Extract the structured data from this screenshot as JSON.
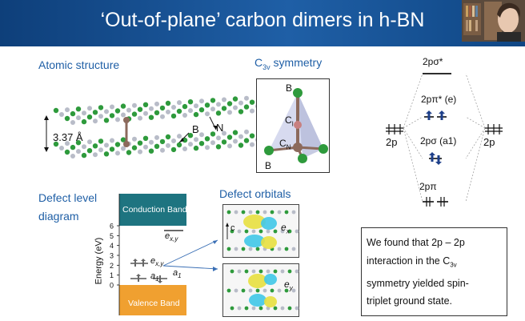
{
  "slide": {
    "title": "‘Out-of-plane’ carbon dimers in h-BN"
  },
  "atomic_structure": {
    "heading": "Atomic structure",
    "spacing_label": "3.37 Å",
    "label_b": "B",
    "label_n": "N"
  },
  "symmetry": {
    "heading_main": "C",
    "heading_sub": "3v",
    "heading_rest": " symmetry",
    "label_b_top": "B",
    "label_b_bottom": "B",
    "label_c_main": "C",
    "label_c_sub": "I",
    "label_cn_main": "C",
    "label_cn_sub": "N"
  },
  "mo_diagram": {
    "sigma_star": "2pσ*",
    "pi_star": "2pπ* (e)",
    "sigma": "2pσ (a1)",
    "pi": "2pπ",
    "left_atom": "2p",
    "right_atom": "2p"
  },
  "defect_level": {
    "heading_line1": "Defect level",
    "heading_line2": "diagram",
    "conduction_band": "Conduction Band",
    "valence_band": "Valence Band",
    "y_axis_label": "Energy (eV)",
    "y_ticks": [
      "0",
      "1",
      "2",
      "3",
      "4",
      "5",
      "6"
    ],
    "level_exy_empty": "e",
    "level_exy_empty_sub": "x,y",
    "level_exy_occupied": "e",
    "level_exy_occupied_sub": "x,y",
    "level_a1_left": "a",
    "level_a1_left_sub": "1",
    "level_a1_right": "a",
    "level_a1_right_sub": "1"
  },
  "defect_orbitals": {
    "heading": "Defect orbitals",
    "axis_c": "c",
    "ex_main": "e",
    "ex_sub": "x",
    "ey_main": "e",
    "ey_sub": "y"
  },
  "conclusion": {
    "line1": "We found that 2p – 2p",
    "line2": "interaction in the C3v",
    "line3": "symmetry yielded spin-",
    "line4": "triplet ground state."
  },
  "colors": {
    "title_bar": "#1f5fa6",
    "heading_blue": "#1f5fa6",
    "conduction_band": "#1e7480",
    "valence_band": "#f0a030",
    "boron_green": "#2e9a3c",
    "nitrogen_grey": "#b8bcc8",
    "carbon_brown": "#8c6a5c",
    "electron_arrow": "#1d3f8a",
    "orbital_yellow": "#e8e040",
    "orbital_cyan": "#40c8e8"
  }
}
